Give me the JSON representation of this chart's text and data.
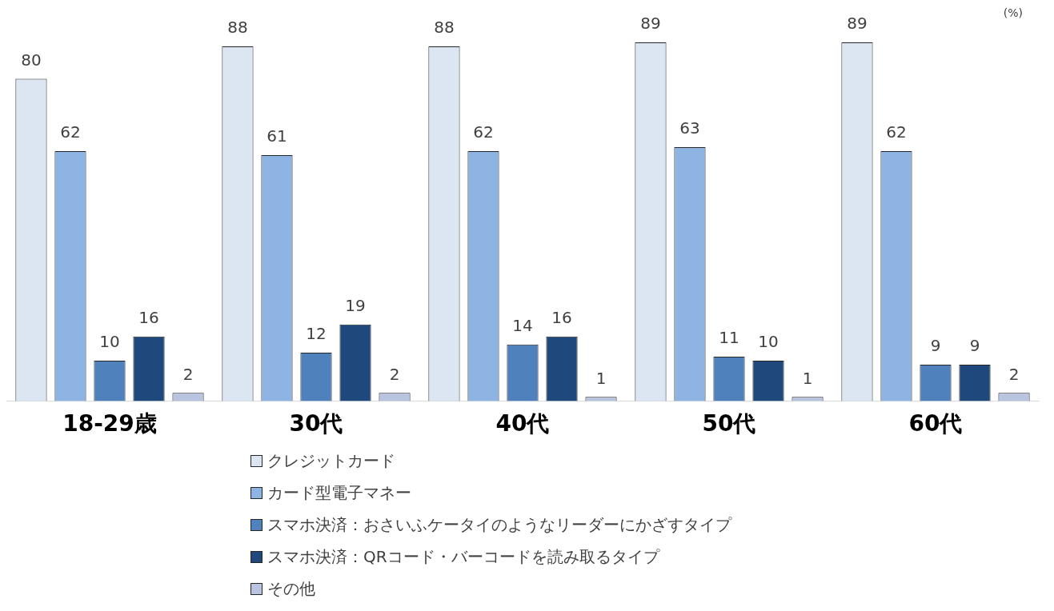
{
  "chart_data": {
    "type": "bar",
    "categories": [
      "18-29歳",
      "30代",
      "40代",
      "50代",
      "60代"
    ],
    "series": [
      {
        "name": "クレジットカード",
        "color": "#dce6f2",
        "values": [
          80,
          88,
          88,
          89,
          89
        ]
      },
      {
        "name": "カード型電子マネー",
        "color": "#8db4e2",
        "values": [
          62,
          61,
          62,
          63,
          62
        ]
      },
      {
        "name": "スマホ決済：おさいふケータイのようなリーダーにかざすタイプ",
        "color": "#4f81bd",
        "values": [
          10,
          12,
          14,
          11,
          9
        ]
      },
      {
        "name": "スマホ決済：QRコード・バーコードを読み取るタイプ",
        "color": "#1f497d",
        "values": [
          16,
          19,
          16,
          10,
          9
        ]
      },
      {
        "name": "その他",
        "color": "#b9c5e0",
        "values": [
          2,
          2,
          1,
          1,
          2
        ]
      }
    ],
    "data_labels": true,
    "legend": "bottom",
    "grid": false,
    "annotations": [
      "(%)"
    ]
  }
}
